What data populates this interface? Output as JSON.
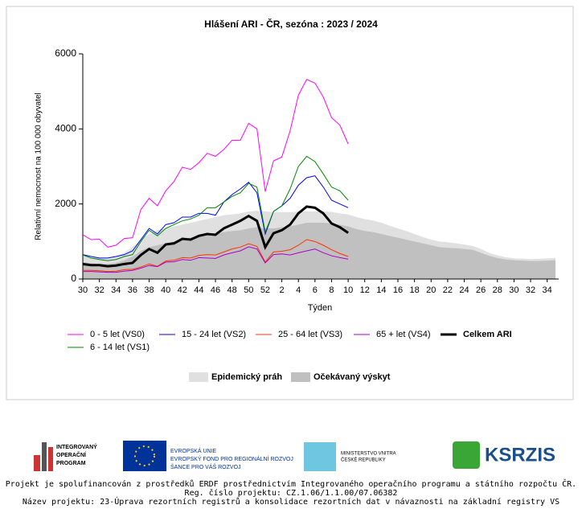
{
  "chart_data": {
    "type": "line",
    "title": "Hlášení ARI - ČR, sezóna : 2023 / 2024",
    "ylabel": "Relativní nemocnost na 100 000 obyvatel",
    "xlabel": "Týden",
    "categories": [
      "30",
      null,
      "32",
      null,
      "34",
      null,
      "36",
      null,
      "38",
      null,
      "40",
      null,
      "42",
      null,
      "44",
      null,
      "46",
      null,
      "48",
      null,
      "50",
      null,
      "52",
      null,
      "2",
      null,
      "4",
      null,
      "6",
      null,
      "8",
      null,
      "10",
      null,
      "12",
      null,
      "14",
      null,
      "16",
      null,
      "18",
      null,
      "20",
      null,
      "22",
      null,
      "24",
      null,
      "26",
      null,
      "28",
      null,
      "30",
      null,
      "32",
      null,
      "34",
      null
    ],
    "ylim": [
      0,
      6000
    ],
    "yticks": [
      0,
      2000,
      4000,
      6000
    ],
    "areas": [
      {
        "name": "Epidemický práh",
        "color": "#e0e0e0",
        "values": [
          620,
          570,
          560,
          560,
          600,
          700,
          850,
          1050,
          1200,
          1300,
          1350,
          1400,
          1450,
          1500,
          1550,
          1600,
          1650,
          1700,
          1720,
          1750,
          1800,
          1820,
          1800,
          1780,
          1780,
          1780,
          1800,
          1800,
          1800,
          1800,
          1790,
          1750,
          1720,
          1650,
          1600,
          1560,
          1500,
          1420,
          1350,
          1280,
          1200,
          1120,
          1050,
          1000,
          980,
          950,
          920,
          880,
          800,
          700,
          630,
          580,
          550,
          540,
          530,
          540,
          550,
          560
        ]
      },
      {
        "name": "Očekávaný výskyt",
        "color": "#c0c0c0",
        "values": [
          450,
          420,
          400,
          400,
          430,
          500,
          600,
          750,
          850,
          900,
          950,
          1000,
          1050,
          1100,
          1130,
          1180,
          1200,
          1250,
          1280,
          1300,
          1350,
          1380,
          1350,
          1350,
          1380,
          1400,
          1450,
          1500,
          1500,
          1500,
          1480,
          1450,
          1400,
          1330,
          1280,
          1250,
          1200,
          1150,
          1100,
          1050,
          1000,
          950,
          900,
          850,
          830,
          820,
          800,
          780,
          700,
          620,
          560,
          520,
          500,
          490,
          480,
          480,
          490,
          500
        ]
      }
    ],
    "series": [
      {
        "name": "0 - 5 let (VS0)",
        "color": "#ff00ff",
        "width": 1,
        "values": [
          1180,
          1050,
          1060,
          850,
          900,
          1080,
          1100,
          1850,
          2150,
          1950,
          2350,
          2600,
          2980,
          2920,
          3100,
          3350,
          3270,
          3450,
          3700,
          3700,
          4150,
          4000,
          2330,
          3150,
          3250,
          3950,
          4900,
          5320,
          5220,
          4850,
          4300,
          4100,
          3600,
          null,
          null,
          null,
          null,
          null,
          null,
          null,
          null,
          null,
          null,
          null,
          null,
          null,
          null,
          null,
          null,
          null,
          null,
          null,
          null,
          null,
          null,
          null,
          null,
          null
        ]
      },
      {
        "name": "15 - 24 let (VS2)",
        "color": "#0000ff",
        "width": 1,
        "values": [
          650,
          600,
          560,
          560,
          600,
          650,
          750,
          1050,
          1350,
          1200,
          1450,
          1500,
          1650,
          1650,
          1750,
          1750,
          1700,
          2050,
          2250,
          2400,
          2580,
          2300,
          1200,
          1800,
          1950,
          2150,
          2500,
          2700,
          2750,
          2450,
          2100,
          2000,
          1900,
          null,
          null,
          null,
          null,
          null,
          null,
          null,
          null,
          null,
          null,
          null,
          null,
          null,
          null,
          null,
          null,
          null,
          null,
          null,
          null,
          null,
          null,
          null,
          null,
          null
        ]
      },
      {
        "name": "25 - 64 let (VS3)",
        "color": "#ff3300",
        "width": 1,
        "values": [
          230,
          230,
          220,
          200,
          210,
          250,
          260,
          320,
          400,
          340,
          480,
          500,
          570,
          560,
          630,
          650,
          640,
          720,
          800,
          850,
          940,
          870,
          450,
          720,
          740,
          780,
          900,
          1050,
          1000,
          900,
          780,
          680,
          600,
          null,
          null,
          null,
          null,
          null,
          null,
          null,
          null,
          null,
          null,
          null,
          null,
          null,
          null,
          null,
          null,
          null,
          null,
          null,
          null,
          null,
          null,
          null,
          null,
          null
        ]
      },
      {
        "name": "65 + let (VS4)",
        "color": "#aa00cc",
        "width": 1,
        "values": [
          200,
          200,
          190,
          180,
          180,
          210,
          230,
          290,
          360,
          330,
          450,
          460,
          520,
          500,
          570,
          560,
          550,
          640,
          700,
          750,
          860,
          800,
          430,
          650,
          670,
          640,
          700,
          750,
          800,
          700,
          620,
          570,
          530,
          null,
          null,
          null,
          null,
          null,
          null,
          null,
          null,
          null,
          null,
          null,
          null,
          null,
          null,
          null,
          null,
          null,
          null,
          null,
          null,
          null,
          null,
          null,
          null,
          null
        ]
      },
      {
        "name": "Celkem ARI",
        "color": "#000000",
        "width": 3,
        "values": [
          400,
          370,
          370,
          340,
          360,
          400,
          430,
          640,
          800,
          700,
          920,
          950,
          1070,
          1050,
          1150,
          1200,
          1180,
          1350,
          1450,
          1550,
          1680,
          1550,
          850,
          1220,
          1300,
          1450,
          1750,
          1930,
          1900,
          1750,
          1480,
          1380,
          1230,
          null,
          null,
          null,
          null,
          null,
          null,
          null,
          null,
          null,
          null,
          null,
          null,
          null,
          null,
          null,
          null,
          null,
          null,
          null,
          null,
          null,
          null,
          null,
          null,
          null
        ]
      },
      {
        "name": "6 - 14 let (VS1)",
        "color": "#008800",
        "width": 1,
        "values": [
          640,
          560,
          520,
          490,
          520,
          600,
          650,
          1000,
          1300,
          1150,
          1350,
          1450,
          1550,
          1600,
          1700,
          1900,
          1900,
          2050,
          2200,
          2300,
          2550,
          2450,
          1250,
          1800,
          1950,
          2400,
          3000,
          3270,
          3130,
          2800,
          2450,
          2350,
          2100,
          null,
          null,
          null,
          null,
          null,
          null,
          null,
          null,
          null,
          null,
          null,
          null,
          null,
          null,
          null,
          null,
          null,
          null,
          null,
          null,
          null,
          null,
          null,
          null,
          null
        ]
      }
    ]
  },
  "footer": {
    "logos": [
      "INTEGROVANÝ",
      "OPERAČNÍ",
      "PROGRAM",
      "EVROPSKÁ UNIE",
      "EVROPSKÝ FOND PRO REGIONÁLNÍ ROZVOJ",
      "ŠANCE PRO VÁŠ ROZVOJ",
      "MINISTERSTVO VNITRA",
      "ČESKÉ REPUBLIKY",
      "KSRZIS"
    ],
    "lines": [
      "Projekt je spolufinancován z prostředků ERDF prostřednictvím Integrovaného operačního programu a státního rozpočtu ČR.",
      "Reg. číslo projektu: CZ.1.06/1.1.00/07.06382",
      "Název projektu: 23-Úprava rezortních registrů a konsolidace rezortních dat v návaznosti na základní registry VS"
    ]
  }
}
